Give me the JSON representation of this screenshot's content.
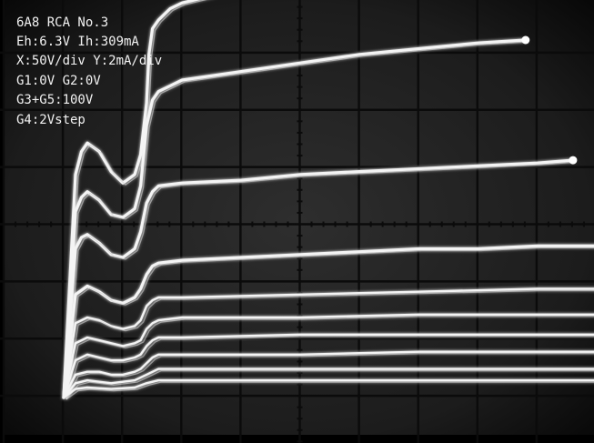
{
  "chart_data": {
    "type": "line",
    "title": "6A8 RCA No.3",
    "annotations": [
      "Eh:6.3V Ih:309mA",
      "X:50V/div Y:2mA/div",
      "G1:0V G2:0V",
      "G3+G5:100V",
      "G4:2Vstep"
    ],
    "xlabel": "",
    "ylabel": "",
    "x_units": "V",
    "y_units": "mA",
    "xlim": [
      0,
      500
    ],
    "ylim": [
      0,
      16
    ],
    "grid": true,
    "series": [
      {
        "x": [
          0,
          10,
          15,
          20,
          30,
          40,
          50,
          60,
          65,
          70,
          72,
          75,
          80,
          85,
          90,
          100,
          120,
          150,
          200,
          250,
          300,
          350,
          360
        ],
        "y": [
          0,
          7.8,
          8.6,
          8.9,
          8.6,
          7.9,
          7.5,
          7.8,
          8.5,
          10.3,
          12.0,
          12.9,
          13.2,
          13.4,
          13.6,
          13.8,
          14.0,
          14.3,
          14.7,
          15.0,
          15.3,
          15.5,
          15.6
        ]
      },
      {
        "x": [
          0,
          10,
          15,
          20,
          30,
          40,
          50,
          60,
          65,
          70,
          75,
          80,
          90,
          100,
          150,
          200,
          250,
          300,
          350,
          390
        ],
        "y": [
          0,
          6.5,
          7.0,
          7.2,
          6.9,
          6.4,
          6.3,
          6.6,
          7.4,
          9.5,
          10.4,
          10.7,
          10.9,
          11.1,
          11.4,
          11.7,
          12.0,
          12.2,
          12.4,
          12.5
        ]
      },
      {
        "x": [
          0,
          10,
          15,
          20,
          30,
          40,
          50,
          60,
          65,
          70,
          75,
          80,
          100,
          150,
          200,
          250,
          300,
          350,
          400,
          430
        ],
        "y": [
          0,
          5.2,
          5.6,
          5.7,
          5.4,
          5.0,
          4.9,
          5.2,
          5.8,
          6.8,
          7.2,
          7.4,
          7.5,
          7.6,
          7.8,
          7.9,
          8.0,
          8.1,
          8.2,
          8.3
        ]
      },
      {
        "x": [
          0,
          10,
          20,
          30,
          40,
          50,
          60,
          65,
          70,
          75,
          80,
          100,
          150,
          200,
          250,
          300,
          350,
          400,
          450,
          460
        ],
        "y": [
          0,
          3.6,
          3.9,
          3.7,
          3.4,
          3.3,
          3.5,
          3.8,
          4.3,
          4.6,
          4.7,
          4.8,
          4.9,
          5.0,
          5.1,
          5.2,
          5.2,
          5.3,
          5.3,
          5.3
        ]
      },
      {
        "x": [
          0,
          10,
          20,
          30,
          40,
          50,
          60,
          65,
          70,
          75,
          80,
          100,
          200,
          300,
          400,
          470
        ],
        "y": [
          0,
          2.6,
          2.8,
          2.7,
          2.5,
          2.4,
          2.5,
          2.7,
          3.2,
          3.4,
          3.5,
          3.5,
          3.6,
          3.7,
          3.8,
          3.8
        ]
      },
      {
        "x": [
          0,
          10,
          20,
          30,
          40,
          50,
          60,
          65,
          70,
          75,
          80,
          100,
          200,
          300,
          400,
          480
        ],
        "y": [
          0,
          1.9,
          2.1,
          2.0,
          1.9,
          1.8,
          1.9,
          2.0,
          2.4,
          2.6,
          2.7,
          2.8,
          2.8,
          2.9,
          2.9,
          2.9
        ]
      },
      {
        "x": [
          0,
          10,
          20,
          30,
          40,
          50,
          60,
          65,
          70,
          75,
          80,
          100,
          200,
          300,
          400,
          485
        ],
        "y": [
          0,
          1.3,
          1.5,
          1.4,
          1.3,
          1.3,
          1.4,
          1.5,
          1.8,
          2.0,
          2.1,
          2.1,
          2.2,
          2.2,
          2.2,
          2.2
        ]
      },
      {
        "x": [
          0,
          10,
          20,
          30,
          40,
          50,
          60,
          65,
          70,
          75,
          80,
          100,
          200,
          300,
          400,
          490
        ],
        "y": [
          0,
          0.8,
          0.9,
          0.9,
          0.8,
          0.8,
          0.9,
          1.0,
          1.2,
          1.4,
          1.5,
          1.5,
          1.5,
          1.6,
          1.6,
          1.6
        ]
      },
      {
        "x": [
          0,
          10,
          20,
          40,
          60,
          70,
          80,
          100,
          200,
          300,
          400,
          490
        ],
        "y": [
          0,
          0.5,
          0.6,
          0.5,
          0.6,
          0.8,
          1.0,
          1.0,
          1.0,
          1.0,
          1.0,
          1.0
        ]
      },
      {
        "x": [
          0,
          10,
          20,
          40,
          60,
          70,
          80,
          100,
          200,
          300,
          400,
          490
        ],
        "y": [
          0,
          0.3,
          0.35,
          0.3,
          0.35,
          0.5,
          0.6,
          0.6,
          0.6,
          0.6,
          0.6,
          0.6
        ]
      }
    ]
  }
}
